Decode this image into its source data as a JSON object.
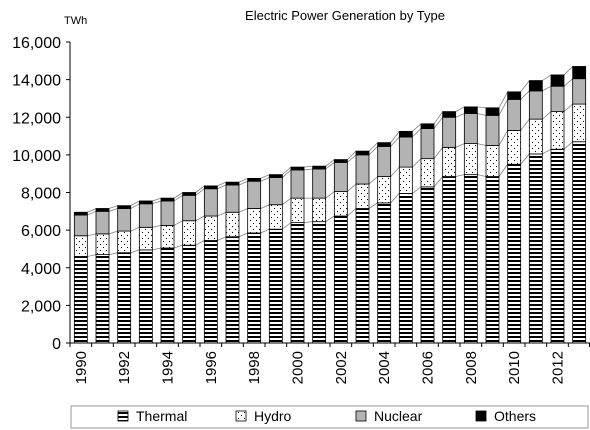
{
  "chart_data": {
    "type": "bar",
    "stacked": true,
    "title": "Electric Power Generation by Type",
    "ylabel": "TWh",
    "xlabel": "",
    "ylim": [
      0,
      16000
    ],
    "yticks": [
      0,
      2000,
      4000,
      6000,
      8000,
      10000,
      12000,
      14000,
      16000
    ],
    "ytick_labels": [
      "0",
      "2,000",
      "4,000",
      "6,000",
      "8,000",
      "10,000",
      "12,000",
      "14,000",
      "16,000"
    ],
    "categories": [
      "1990",
      "1991",
      "1992",
      "1993",
      "1994",
      "1995",
      "1996",
      "1997",
      "1998",
      "1999",
      "2000",
      "2001",
      "2002",
      "2003",
      "2004",
      "2005",
      "2006",
      "2007",
      "2008",
      "2009",
      "2010",
      "2011",
      "2012",
      "2013"
    ],
    "xtick_labels": [
      "1990",
      "1992",
      "1994",
      "1996",
      "1998",
      "2000",
      "2002",
      "2004",
      "2006",
      "2008",
      "2010",
      "2012"
    ],
    "grid": false,
    "legend_position": "bottom",
    "series": [
      {
        "name": "Thermal",
        "values": [
          4600,
          4700,
          4800,
          4950,
          5050,
          5200,
          5450,
          5650,
          5850,
          6050,
          6400,
          6450,
          6750,
          7150,
          7450,
          7950,
          8300,
          8850,
          8950,
          8850,
          9500,
          10050,
          10300,
          10700
        ]
      },
      {
        "name": "Hydro",
        "values": [
          1100,
          1100,
          1150,
          1200,
          1200,
          1300,
          1300,
          1300,
          1300,
          1300,
          1300,
          1250,
          1300,
          1300,
          1400,
          1400,
          1500,
          1550,
          1650,
          1650,
          1800,
          1850,
          2000,
          2000
        ]
      },
      {
        "name": "Nuclear",
        "values": [
          1100,
          1200,
          1200,
          1250,
          1300,
          1350,
          1450,
          1450,
          1450,
          1450,
          1500,
          1550,
          1550,
          1550,
          1600,
          1600,
          1600,
          1600,
          1600,
          1600,
          1650,
          1500,
          1350,
          1350
        ]
      },
      {
        "name": "Others",
        "values": [
          150,
          150,
          150,
          150,
          150,
          150,
          150,
          150,
          150,
          150,
          150,
          150,
          150,
          200,
          200,
          300,
          250,
          300,
          350,
          400,
          400,
          550,
          600,
          650
        ]
      }
    ]
  }
}
